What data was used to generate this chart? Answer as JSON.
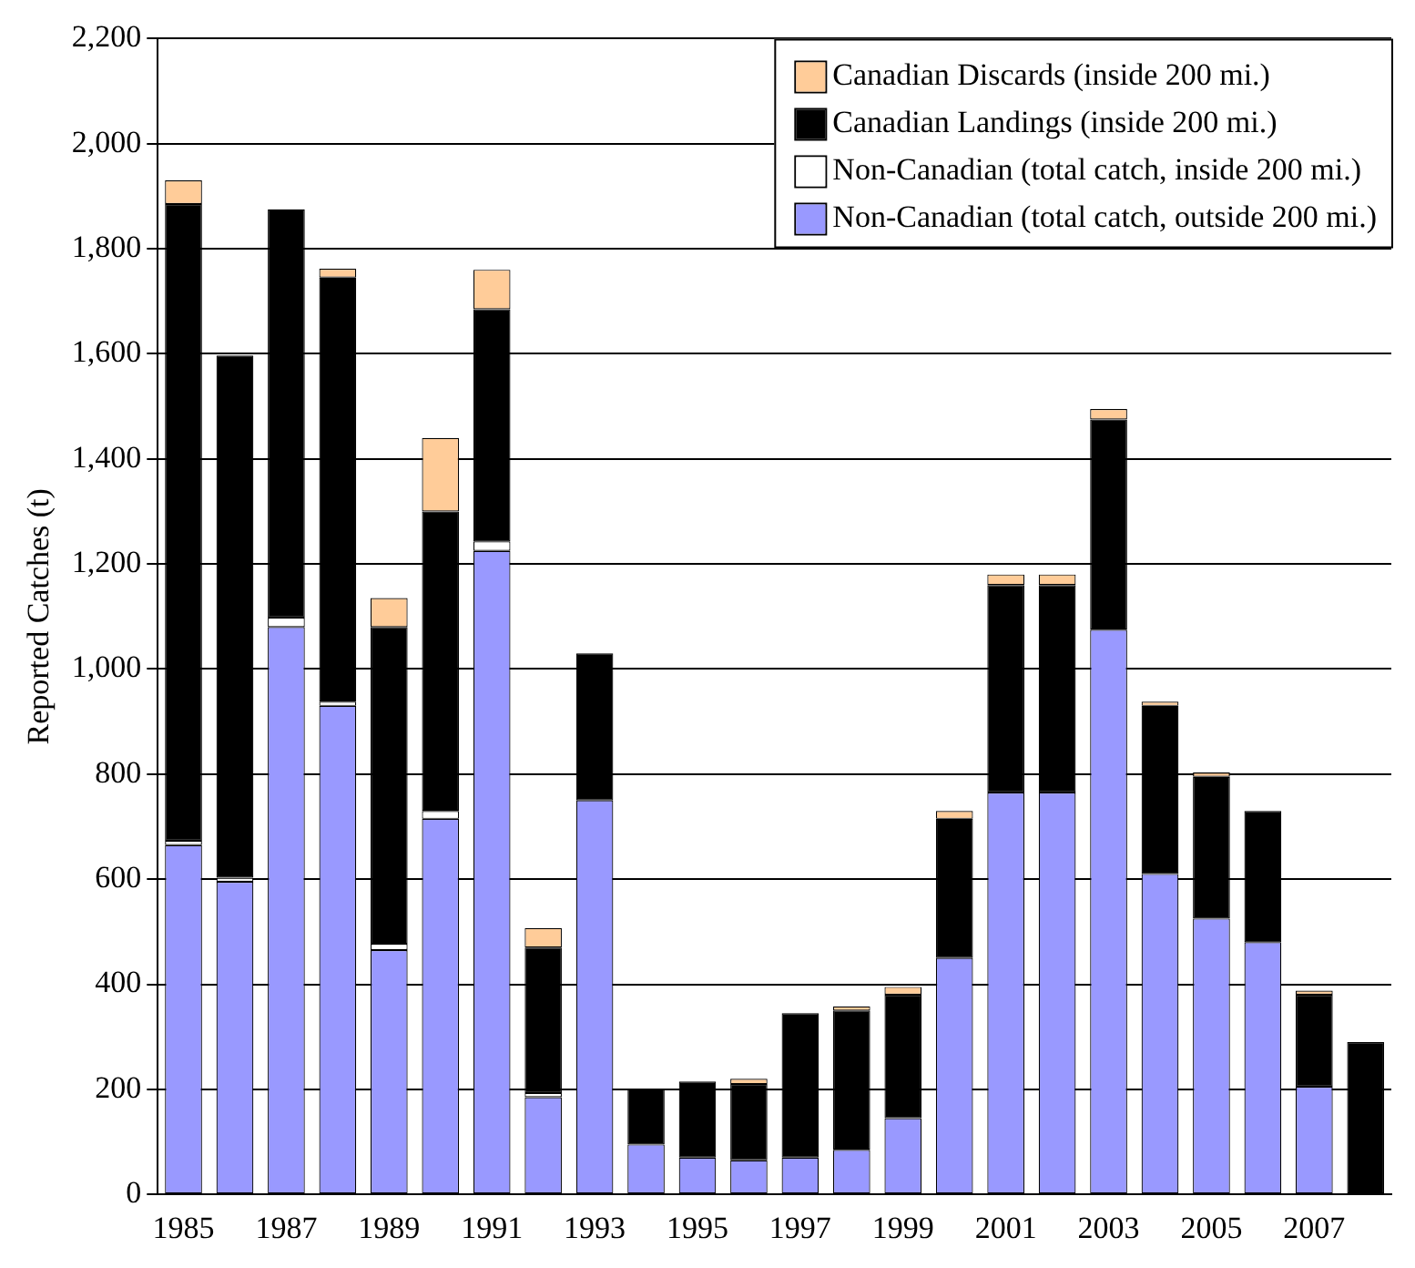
{
  "chart_data": {
    "type": "bar",
    "stacked": true,
    "ylabel": "Reported Catches (t)",
    "categories": [
      "1985",
      null,
      "1987",
      null,
      "1989",
      null,
      "1991",
      null,
      "1993",
      null,
      "1995",
      null,
      "1997",
      null,
      "1999",
      null,
      "2001",
      null,
      "2003",
      null,
      "2005",
      null,
      "2007",
      null
    ],
    "series": [
      {
        "name": "Non-Canadian (total catch, outside 200 mi.)",
        "color": "#9999ff",
        "values": [
          665,
          595,
          1080,
          930,
          465,
          715,
          1225,
          185,
          750,
          95,
          70,
          65,
          70,
          85,
          145,
          450,
          765,
          765,
          1075,
          610,
          525,
          480,
          205,
          null
        ]
      },
      {
        "name": "Non-Canadian (total catch, inside 200 mi.)",
        "color": "#ffffff",
        "values": [
          8,
          8,
          18,
          8,
          12,
          15,
          18,
          8,
          null,
          null,
          null,
          null,
          null,
          null,
          null,
          null,
          null,
          null,
          null,
          null,
          null,
          null,
          null,
          null
        ]
      },
      {
        "name": "Canadian Landings (inside 200 mi.)",
        "color": "#000000",
        "values": [
          1212,
          994,
          777,
          807,
          603,
          570,
          442,
          277,
          280,
          105,
          145,
          145,
          275,
          265,
          235,
          265,
          395,
          395,
          400,
          320,
          270,
          250,
          175,
          290
        ]
      },
      {
        "name": "Canadian Discards (inside 200 mi.)",
        "color": "#ffcc99",
        "values": [
          45,
          null,
          null,
          17,
          55,
          140,
          75,
          37,
          null,
          null,
          null,
          10,
          null,
          8,
          15,
          15,
          20,
          20,
          20,
          8,
          8,
          null,
          8,
          null
        ]
      }
    ],
    "ylim": [
      0,
      2200
    ],
    "yticks": [
      0,
      200,
      400,
      600,
      800,
      {
        "value": 1000,
        "label": "1,000"
      },
      {
        "value": 1200,
        "label": "1,200"
      },
      {
        "value": 1400,
        "label": "1,400"
      },
      {
        "value": 1600,
        "label": "1,600"
      },
      {
        "value": 1800,
        "label": "1,800"
      },
      {
        "value": 2000,
        "label": "2,000"
      },
      {
        "value": 2200,
        "label": "2,200"
      }
    ],
    "grid": "y",
    "legend": "top right"
  }
}
